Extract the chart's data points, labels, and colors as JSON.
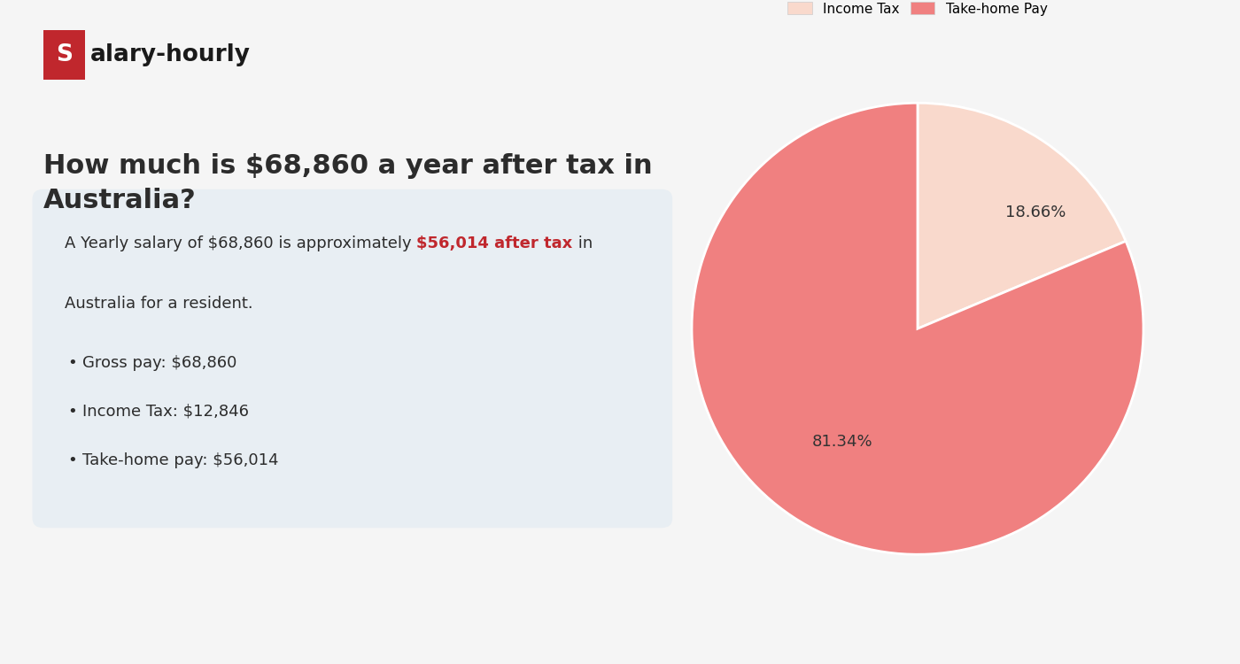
{
  "background_color": "#f5f5f5",
  "logo_text_s": "S",
  "logo_text_rest": "alary-hourly",
  "logo_box_color": "#c0272d",
  "logo_text_color": "#1a1a1a",
  "heading": "How much is $68,860 a year after tax in\nAustralia?",
  "heading_color": "#2c2c2c",
  "heading_fontsize": 22,
  "info_box_color": "#e8eef3",
  "summary_text_plain": "A Yearly salary of $68,860 is approximately ",
  "summary_text_highlight": "$56,014 after tax",
  "summary_text_end": " in",
  "summary_line2": "Australia for a resident.",
  "highlight_color": "#c0272d",
  "bullet_items": [
    "Gross pay: $68,860",
    "Income Tax: $12,846",
    "Take-home pay: $56,014"
  ],
  "bullet_color": "#2c2c2c",
  "pie_values": [
    18.66,
    81.34
  ],
  "pie_labels": [
    "Income Tax",
    "Take-home Pay"
  ],
  "pie_colors": [
    "#f9d9cc",
    "#f08080"
  ],
  "pie_pct_labels": [
    "18.66%",
    "81.34%"
  ],
  "pie_startangle": 90,
  "legend_fontsize": 11,
  "text_fontsize": 13,
  "bullet_fontsize": 13
}
